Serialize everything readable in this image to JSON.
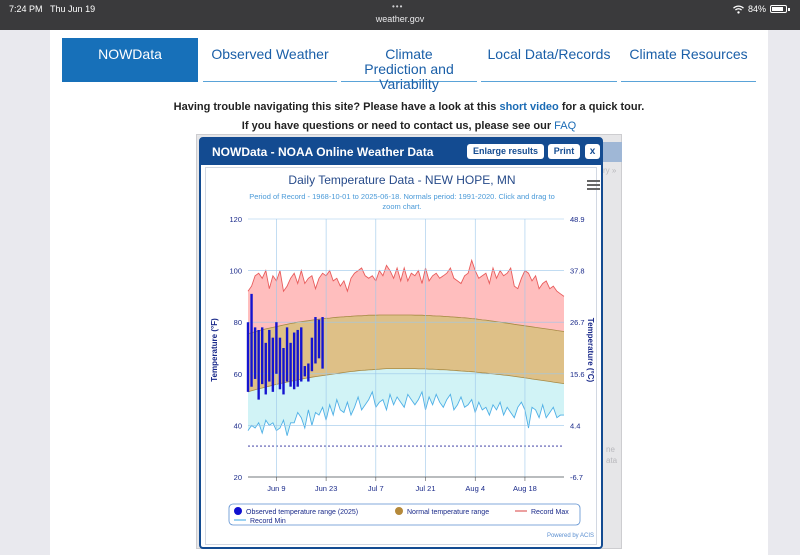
{
  "status_bar": {
    "time": "7:24 PM",
    "date": "Thu Jun 19",
    "url": "weather.gov",
    "battery": "84%"
  },
  "nav": {
    "tabs": [
      {
        "label": "NOWData"
      },
      {
        "label": "Observed Weather"
      },
      {
        "label": "Climate Prediction and Variability"
      },
      {
        "label": "Local Data/Records"
      },
      {
        "label": "Climate Resources"
      }
    ]
  },
  "notice": {
    "line1_prefix": "Having trouble navigating this site? Please have a look at this",
    "line1_link": "short video",
    "line1_suffix": "for a quick tour.",
    "line2_prefix": "If you have questions or need to contact us, please see our",
    "line2_link": "FAQ"
  },
  "background_panel": {
    "text_1": "ry »",
    "text_2": "ne",
    "text_3": "ata"
  },
  "dialog": {
    "title": "NOWData - NOAA Online Weather Data",
    "enlarge_label": "Enlarge results",
    "print_label": "Print",
    "close_label": "x"
  },
  "chart_data": {
    "type": "area",
    "title": "Daily Temperature Data - NEW HOPE, MN",
    "subtitle_line1": "Period of Record - 1968-10-01 to 2025-06-18. Normals period: 1991-2020. Click and drag to",
    "subtitle_line2": "zoom chart.",
    "ylabel": "Temperature (°F)",
    "ylabel_right": "Temperature (°C)",
    "ylim": [
      20,
      120
    ],
    "left_ticks": [
      "120",
      "100",
      "80",
      "60",
      "40",
      "20"
    ],
    "right_ticks": [
      "48.9",
      "37.8",
      "26.7",
      "15.6",
      "4.4",
      "-6.7"
    ],
    "x_ticks": [
      "Jun 9",
      "Jun 23",
      "Jul 7",
      "Jul 21",
      "Aug 4",
      "Aug 18"
    ],
    "x_tick_days": [
      8,
      22,
      36,
      50,
      64,
      78
    ],
    "days": 90,
    "legend": {
      "observed": "Observed temperature range (2025)",
      "normal": "Normal temperature range",
      "record_max": "Record Max",
      "record_min": "Record Min"
    },
    "credits": "Powered by ACIS",
    "record_max": [
      92,
      94,
      98,
      99,
      97,
      100,
      93,
      98,
      96,
      100,
      92,
      94,
      97,
      99,
      95,
      100,
      95,
      97,
      98,
      93,
      97,
      99,
      98,
      100,
      96,
      97,
      94,
      96,
      92,
      97,
      99,
      100,
      101,
      98,
      97,
      98,
      96,
      100,
      98,
      102,
      100,
      97,
      101,
      96,
      101,
      96,
      99,
      98,
      100,
      95,
      101,
      96,
      98,
      99,
      97,
      98,
      99,
      101,
      97,
      96,
      95,
      98,
      99,
      104,
      100,
      97,
      98,
      99,
      95,
      101,
      97,
      100,
      98,
      99,
      101,
      94,
      93,
      97,
      100,
      99,
      96,
      98,
      93,
      95,
      96,
      93,
      94,
      92,
      91,
      90
    ],
    "record_min": [
      38,
      40,
      39,
      41,
      37,
      42,
      40,
      41,
      38,
      39,
      42,
      36,
      41,
      41,
      45,
      43,
      39,
      46,
      40,
      45,
      44,
      47,
      42,
      48,
      44,
      50,
      46,
      45,
      49,
      44,
      47,
      51,
      46,
      48,
      50,
      53,
      47,
      49,
      50,
      46,
      52,
      48,
      51,
      49,
      47,
      52,
      50,
      48,
      50,
      53,
      46,
      51,
      48,
      52,
      49,
      47,
      50,
      52,
      46,
      48,
      51,
      47,
      48,
      50,
      45,
      49,
      46,
      47,
      44,
      48,
      46,
      49,
      44,
      47,
      45,
      43,
      47,
      49,
      46,
      39,
      47,
      46,
      43,
      48,
      43,
      45,
      47,
      43,
      44,
      44
    ],
    "normal_high": [
      75.5,
      75.9,
      76.3,
      76.7,
      77.0,
      77.4,
      77.7,
      78.0,
      78.3,
      78.6,
      78.9,
      79.2,
      79.5,
      79.7,
      80.0,
      80.2,
      80.4,
      80.6,
      80.8,
      81.0,
      81.2,
      81.4,
      81.5,
      81.6,
      81.8,
      81.9,
      82.0,
      82.1,
      82.2,
      82.3,
      82.4,
      82.5,
      82.5,
      82.6,
      82.7,
      82.7,
      82.7,
      82.8,
      82.8,
      82.8,
      82.8,
      82.8,
      82.8,
      82.8,
      82.8,
      82.8,
      82.8,
      82.7,
      82.7,
      82.7,
      82.6,
      82.6,
      82.5,
      82.4,
      82.4,
      82.3,
      82.2,
      82.1,
      82.0,
      81.9,
      81.8,
      81.7,
      81.6,
      81.4,
      81.3,
      81.1,
      80.9,
      80.8,
      80.6,
      80.4,
      80.2,
      80.0,
      79.8,
      79.6,
      79.4,
      79.2,
      79.0,
      78.8,
      78.6,
      78.4,
      78.2,
      78.0,
      77.8,
      77.6,
      77.4,
      77.2,
      77.0,
      76.8,
      76.6,
      76.4
    ],
    "normal_low": [
      53.0,
      53.4,
      53.8,
      54.2,
      54.5,
      54.9,
      55.2,
      55.6,
      55.9,
      56.2,
      56.5,
      56.8,
      57.1,
      57.4,
      57.6,
      57.9,
      58.2,
      58.4,
      58.7,
      58.9,
      59.1,
      59.3,
      59.5,
      59.7,
      59.9,
      60.1,
      60.3,
      60.5,
      60.7,
      60.9,
      61.0,
      61.2,
      61.3,
      61.4,
      61.5,
      61.6,
      61.7,
      61.8,
      61.9,
      62.0,
      62.0,
      62.0,
      62.0,
      62.0,
      62.0,
      62.0,
      62.0,
      62.0,
      61.9,
      61.9,
      61.9,
      61.8,
      61.8,
      61.7,
      61.6,
      61.6,
      61.5,
      61.4,
      61.3,
      61.2,
      61.1,
      61.0,
      60.9,
      60.8,
      60.7,
      60.5,
      60.4,
      60.3,
      60.1,
      60.0,
      59.8,
      59.7,
      59.5,
      59.4,
      59.2,
      59.0,
      58.8,
      58.6,
      58.4,
      58.2,
      58.0,
      57.8,
      57.6,
      57.4,
      57.2,
      57.0,
      56.8,
      56.6,
      56.4,
      56.2
    ],
    "observed": [
      {
        "low": 53,
        "high": 80
      },
      {
        "low": 55,
        "high": 91
      },
      {
        "low": 58,
        "high": 78
      },
      {
        "low": 50,
        "high": 77
      },
      {
        "low": 56,
        "high": 78
      },
      {
        "low": 52,
        "high": 72
      },
      {
        "low": 57,
        "high": 77
      },
      {
        "low": 53,
        "high": 74
      },
      {
        "low": 60,
        "high": 80
      },
      {
        "low": 54,
        "high": 74
      },
      {
        "low": 52,
        "high": 70
      },
      {
        "low": 57,
        "high": 78
      },
      {
        "low": 55,
        "high": 72
      },
      {
        "low": 54,
        "high": 76
      },
      {
        "low": 55,
        "high": 77
      },
      {
        "low": 57,
        "high": 78
      },
      {
        "low": 59,
        "high": 63
      },
      {
        "low": 57,
        "high": 64
      },
      {
        "low": 61,
        "high": 74
      },
      {
        "low": 64,
        "high": 82
      },
      {
        "low": 66,
        "high": 81
      },
      {
        "low": 62,
        "high": 82
      }
    ],
    "record_min_lowest_line": 32
  }
}
